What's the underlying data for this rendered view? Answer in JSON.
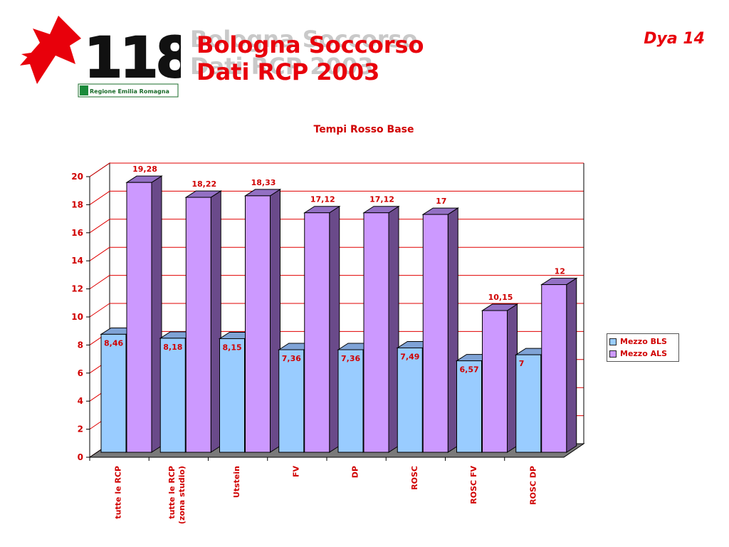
{
  "slide": {
    "title_line1": "Bologna Soccorso",
    "title_line2": "Dati RCP 2003",
    "slide_number": "Dya 14",
    "logo": {
      "number": "118",
      "region": "Regione Emilia Romagna"
    }
  },
  "chart_data": {
    "type": "bar",
    "title": "Tempi Rosso Base",
    "xlabel": "",
    "ylabel": "",
    "ylim": [
      0,
      20
    ],
    "yticks": [
      0,
      2,
      4,
      6,
      8,
      10,
      12,
      14,
      16,
      18,
      20
    ],
    "grid": true,
    "legend_position": "right",
    "categories": [
      "tutte le RCP",
      "tutte le RCP (zona studio)",
      "Utstein",
      "FV",
      "DP",
      "ROSC",
      "ROSC FV",
      "ROSC DP"
    ],
    "category_labels": [
      "tutte le RCP",
      [
        "tutte le RCP",
        "(zona studio)"
      ],
      "Utstein",
      "FV",
      "DP",
      "ROSC",
      "ROSC FV",
      "ROSC DP"
    ],
    "series": [
      {
        "name": "Mezzo BLS",
        "values": [
          8.46,
          8.18,
          8.15,
          7.36,
          7.36,
          7.49,
          6.57,
          7
        ],
        "labels": [
          "8,46",
          "8,18",
          "8,15",
          "7,36",
          "7,36",
          "7,49",
          "6,57",
          "7"
        ],
        "color": "#99ccff"
      },
      {
        "name": "Mezzo ALS",
        "values": [
          19.28,
          18.22,
          18.33,
          17.12,
          17.12,
          17,
          10.15,
          12
        ],
        "labels": [
          "19,28",
          "18,22",
          "18,33",
          "17,12",
          "17,12",
          "17",
          "10,15",
          "12"
        ],
        "color": "#cc99ff"
      }
    ],
    "colors": {
      "axis_text": "#d00000",
      "gridline": "#e00000",
      "floor": "#7a7a7a"
    }
  }
}
